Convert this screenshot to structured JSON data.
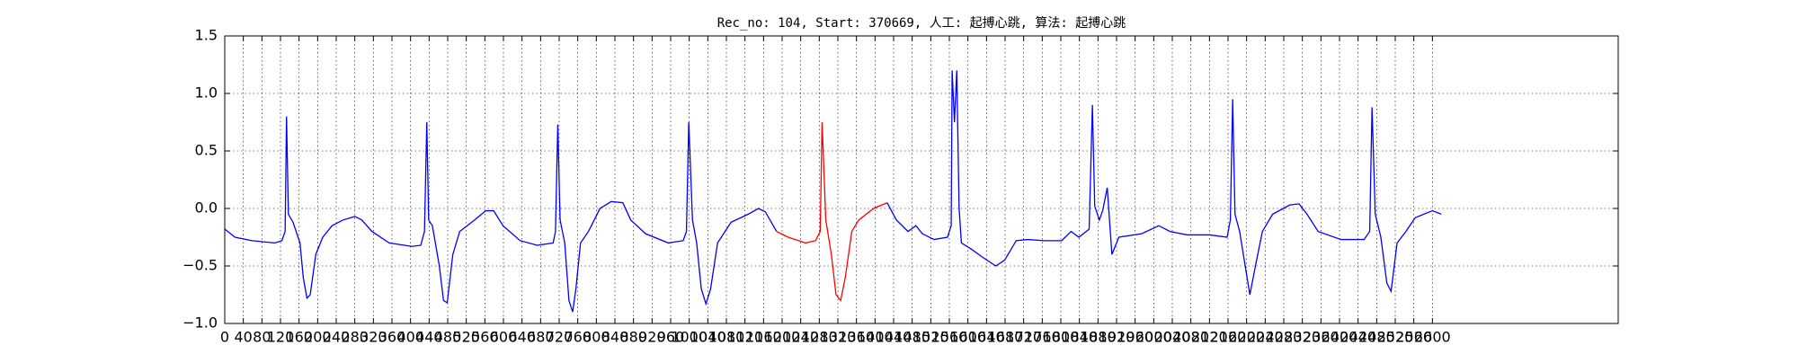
{
  "chart_data": {
    "type": "line",
    "title": "Rec_no: 104, Start: 370669, 人工: 起搏心跳, 算法: 起搏心跳",
    "xlim": [
      0,
      3000
    ],
    "xticks": [
      0,
      40,
      80,
      120,
      160,
      200,
      240,
      280,
      320,
      360,
      400,
      440,
      480,
      520,
      560,
      600,
      640,
      680,
      720,
      760,
      800,
      840,
      880,
      920,
      960,
      1000,
      1040,
      1080,
      1120,
      1160,
      1200,
      1240,
      1280,
      1320,
      1360,
      1400,
      1440,
      1480,
      1520,
      1560,
      1600,
      1640,
      1680,
      1720,
      1760,
      1800,
      1840,
      1880,
      1920,
      1960,
      2000,
      2040,
      2080,
      2120,
      2160,
      2200,
      2240,
      2280,
      2320,
      2360,
      2400,
      2440,
      2480,
      2520,
      2560,
      2600
    ],
    "ylim": [
      -1.0,
      1.5
    ],
    "yticks": [
      {
        "value": -1.0,
        "label": "−1.0"
      },
      {
        "value": -0.5,
        "label": "−0.5"
      },
      {
        "value": 0.0,
        "label": "0.0"
      },
      0.5,
      {
        "value": 1.0,
        "label": "1.0"
      },
      1.5
    ],
    "grid": true,
    "series": [
      {
        "color": "#0000ff",
        "x": [
          0,
          22,
          59,
          108,
          123,
          130,
          133,
          137,
          147,
          162,
          169,
          177,
          184,
          196,
          211,
          231,
          255,
          280,
          295,
          317,
          354,
          403,
          422,
          430,
          435,
          439,
          447,
          462,
          471,
          479,
          491,
          506,
          538,
          562,
          579,
          599,
          636,
          673,
          707,
          712,
          717,
          722,
          732,
          741,
          749,
          756,
          766,
          783,
          808,
          832,
          857,
          874,
          906,
          955,
          987,
          994,
          999,
          1007,
          1016,
          1026,
          1036,
          1046,
          1061,
          1090,
          1127,
          1149,
          1164,
          1188,
          1300,
          1426,
          1446,
          1471,
          1488,
          1502,
          1527,
          1556,
          1564,
          1566,
          1571,
          1576,
          1581,
          1586,
          1606,
          1630,
          1660,
          1679,
          1704,
          1728,
          1765,
          1802,
          1822,
          1839,
          1861,
          1868,
          1873,
          1883,
          1890,
          1900,
          1910,
          1925,
          1974,
          2011,
          2035,
          2072,
          2121,
          2158,
          2165,
          2170,
          2175,
          2185,
          2195,
          2207,
          2219,
          2234,
          2256,
          2293,
          2313,
          2330,
          2354,
          2403,
          2453,
          2465,
          2470,
          2477,
          2489,
          2502,
          2511,
          2524,
          2543,
          2563,
          2600,
          2619
        ],
        "values": [
          -0.18,
          -0.25,
          -0.28,
          -0.3,
          -0.28,
          -0.2,
          0.8,
          -0.05,
          -0.12,
          -0.3,
          -0.6,
          -0.78,
          -0.75,
          -0.4,
          -0.25,
          -0.15,
          -0.1,
          -0.07,
          -0.1,
          -0.2,
          -0.3,
          -0.33,
          -0.32,
          -0.2,
          0.75,
          -0.1,
          -0.15,
          -0.5,
          -0.8,
          -0.82,
          -0.4,
          -0.2,
          -0.1,
          -0.02,
          -0.02,
          -0.15,
          -0.28,
          -0.32,
          -0.3,
          -0.2,
          0.73,
          -0.1,
          -0.3,
          -0.8,
          -0.9,
          -0.7,
          -0.3,
          -0.2,
          0,
          0.06,
          0.05,
          -0.1,
          -0.22,
          -0.3,
          -0.28,
          -0.2,
          0.75,
          -0.1,
          -0.3,
          -0.7,
          -0.83,
          -0.7,
          -0.3,
          -0.12,
          -0.05,
          0,
          -0.03,
          -0.2,
          null,
          0.05,
          -0.1,
          -0.2,
          -0.15,
          -0.22,
          -0.27,
          -0.25,
          -0.15,
          1.2,
          0.75,
          1.2,
          0,
          -0.3,
          -0.35,
          -0.42,
          -0.5,
          -0.45,
          -0.28,
          -0.27,
          -0.28,
          -0.28,
          -0.2,
          -0.25,
          -0.18,
          0.9,
          0.02,
          -0.1,
          -0.02,
          0.18,
          -0.4,
          -0.25,
          -0.22,
          -0.15,
          -0.2,
          -0.23,
          -0.23,
          -0.25,
          -0.1,
          0.95,
          -0.05,
          -0.2,
          -0.45,
          -0.75,
          -0.5,
          -0.2,
          -0.05,
          0.03,
          0.04,
          -0.05,
          -0.2,
          -0.27,
          -0.27,
          -0.2,
          0.88,
          -0.05,
          -0.25,
          -0.65,
          -0.72,
          -0.3,
          -0.2,
          -0.08,
          -0.02,
          -0.05
        ]
      },
      {
        "color": "#ff0000",
        "x": [
          1188,
          1213,
          1250,
          1272,
          1282,
          1286,
          1294,
          1306,
          1316,
          1326,
          1336,
          1350,
          1365,
          1397,
          1426
        ],
        "values": [
          -0.2,
          -0.25,
          -0.3,
          -0.28,
          -0.2,
          0.75,
          -0.1,
          -0.4,
          -0.75,
          -0.8,
          -0.6,
          -0.2,
          -0.1,
          0,
          0.05
        ]
      }
    ]
  }
}
